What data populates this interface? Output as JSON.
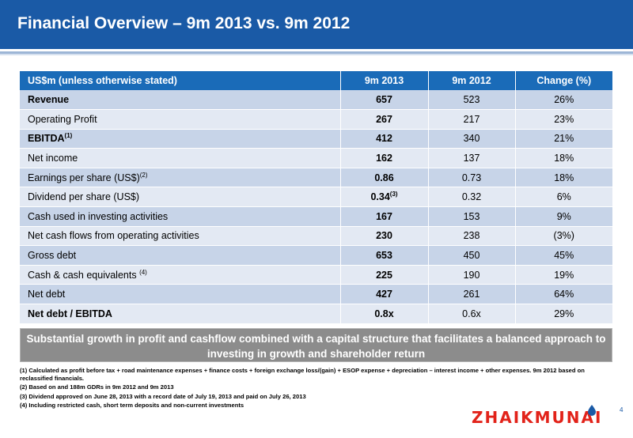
{
  "header": {
    "title": "Financial Overview – 9m 2013 vs. 9m 2012"
  },
  "table": {
    "columns": [
      "US$m (unless otherwise stated)",
      "9m 2013",
      "9m 2012",
      "Change (%)"
    ],
    "rows": [
      {
        "label": "Revenue",
        "sup": "",
        "bold": true,
        "v2013": "657",
        "v2013_sup": "",
        "v2012": "523",
        "change": "26%"
      },
      {
        "label": "Operating Profit",
        "sup": "",
        "bold": false,
        "v2013": "267",
        "v2013_sup": "",
        "v2012": "217",
        "change": "23%"
      },
      {
        "label": "EBITDA",
        "sup": "(1)",
        "bold": true,
        "v2013": "412",
        "v2013_sup": "",
        "v2012": "340",
        "change": "21%"
      },
      {
        "label": "Net income",
        "sup": "",
        "bold": false,
        "v2013": "162",
        "v2013_sup": "",
        "v2012": "137",
        "change": "18%"
      },
      {
        "label": "Earnings per share (US$)",
        "sup": "(2)",
        "bold": false,
        "v2013": "0.86",
        "v2013_sup": "",
        "v2012": "0.73",
        "change": "18%"
      },
      {
        "label": "Dividend per share (US$)",
        "sup": "",
        "bold": false,
        "v2013": "0.34",
        "v2013_sup": "(3)",
        "v2012": "0.32",
        "change": "6%"
      },
      {
        "label": "Cash used in investing activities",
        "sup": "",
        "bold": false,
        "v2013": "167",
        "v2013_sup": "",
        "v2012": "153",
        "change": "9%"
      },
      {
        "label": "Net cash flows from operating activities",
        "sup": "",
        "bold": false,
        "v2013": "230",
        "v2013_sup": "",
        "v2012": "238",
        "change": "(3%)"
      },
      {
        "label": "Gross debt",
        "sup": "",
        "bold": false,
        "v2013": "653",
        "v2013_sup": "",
        "v2012": "450",
        "change": "45%"
      },
      {
        "label": "Cash & cash equivalents ",
        "sup": "(4)",
        "bold": false,
        "v2013": "225",
        "v2013_sup": "",
        "v2012": "190",
        "change": "19%"
      },
      {
        "label": "Net debt",
        "sup": "",
        "bold": false,
        "v2013": "427",
        "v2013_sup": "",
        "v2012": "261",
        "change": "64%"
      },
      {
        "label": "Net debt / EBITDA",
        "sup": "",
        "bold": true,
        "v2013": "0.8x",
        "v2013_sup": "",
        "v2012": "0.6x",
        "change": "29%"
      }
    ]
  },
  "banner": {
    "text": "Substantial growth in profit and cashflow combined with a capital structure that facilitates a balanced approach to investing in growth and shareholder return"
  },
  "footnotes": [
    "(1) Calculated as profit before tax + road maintenance expenses + finance costs + foreign exchange loss/(gain) + ESOP expense + depreciation – interest income + other expenses. 9m 2012 based on reclassified financials.",
    "(2) Based on and 188m GDRs in 9m 2012 and 9m 2013",
    "(3) Dividend approved on June 28, 2013 with a record date of July 19, 2013 and paid on July 26, 2013",
    "(4) Including restricted cash, short term deposits and non-current investments"
  ],
  "logo": {
    "text": "ZHAIKMUNAI",
    "icon": "oil-drop-icon"
  },
  "page_number": "4",
  "colors": {
    "header": "#1a5aa6",
    "table_header": "#1a6bb8",
    "row_dark": "#c7d4e8",
    "row_light": "#e3e9f3",
    "banner": "#8c8c8c",
    "logo": "#e2231a"
  }
}
